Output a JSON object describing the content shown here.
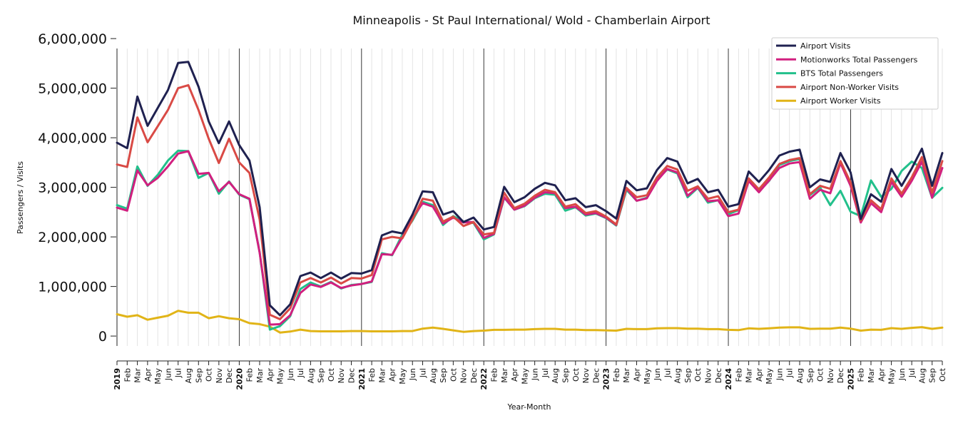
{
  "chart_data": {
    "type": "line",
    "title": "Minneapolis - St Paul International/ Wold - Chamberlain Airport",
    "xlabel": "Year-Month",
    "ylabel": "Passengers / Visits",
    "ylim": [
      -200000,
      5800000
    ],
    "yticks": [
      0,
      1000000,
      2000000,
      3000000,
      4000000,
      5000000,
      6000000
    ],
    "ytick_labels": [
      "0",
      "1,000,000",
      "2,000,000",
      "3,000,000",
      "4,000,000",
      "5,000,000",
      "6,000,000"
    ],
    "grid": "vertical",
    "legend_position": "top-right",
    "x": [
      "2019-01",
      "2019-02",
      "2019-03",
      "2019-04",
      "2019-05",
      "2019-06",
      "2019-07",
      "2019-08",
      "2019-09",
      "2019-10",
      "2019-11",
      "2019-12",
      "2020-01",
      "2020-02",
      "2020-03",
      "2020-04",
      "2020-05",
      "2020-06",
      "2020-07",
      "2020-08",
      "2020-09",
      "2020-10",
      "2020-11",
      "2020-12",
      "2021-01",
      "2021-02",
      "2021-03",
      "2021-04",
      "2021-05",
      "2021-06",
      "2021-07",
      "2021-08",
      "2021-09",
      "2021-10",
      "2021-11",
      "2021-12",
      "2022-01",
      "2022-02",
      "2022-03",
      "2022-04",
      "2022-05",
      "2022-06",
      "2022-07",
      "2022-08",
      "2022-09",
      "2022-10",
      "2022-11",
      "2022-12",
      "2023-01",
      "2023-02",
      "2023-03",
      "2023-04",
      "2023-05",
      "2023-06",
      "2023-07",
      "2023-08",
      "2023-09",
      "2023-10",
      "2023-11",
      "2023-12",
      "2024-01",
      "2024-02",
      "2024-03",
      "2024-04",
      "2024-05",
      "2024-06",
      "2024-07",
      "2024-08",
      "2024-09",
      "2024-10",
      "2024-11",
      "2024-12",
      "2025-01",
      "2025-02",
      "2025-03",
      "2025-04",
      "2025-05",
      "2025-06",
      "2025-07",
      "2025-08",
      "2025-09",
      "2025-10"
    ],
    "xtick_labels": [
      "2019",
      "Feb",
      "Mar",
      "Apr",
      "May",
      "Jun",
      "Jul",
      "Aug",
      "Sep",
      "Oct",
      "Nov",
      "Dec",
      "2020",
      "Feb",
      "Mar",
      "Apr",
      "May",
      "Jun",
      "Jul",
      "Aug",
      "Sep",
      "Oct",
      "Nov",
      "Dec",
      "2021",
      "Feb",
      "Mar",
      "Apr",
      "May",
      "Jun",
      "Jul",
      "Aug",
      "Sep",
      "Oct",
      "Nov",
      "Dec",
      "2022",
      "Feb",
      "Mar",
      "Apr",
      "May",
      "Jun",
      "Jul",
      "Aug",
      "Sep",
      "Oct",
      "Nov",
      "Dec",
      "2023",
      "Feb",
      "Mar",
      "Apr",
      "May",
      "Jun",
      "Jul",
      "Aug",
      "Sep",
      "Oct",
      "Nov",
      "Dec",
      "2024",
      "Feb",
      "Mar",
      "Apr",
      "May",
      "Jun",
      "Jul",
      "Aug",
      "Sep",
      "Oct",
      "Nov",
      "Dec",
      "2025",
      "Feb",
      "Mar",
      "Apr",
      "May",
      "Jun",
      "Jul",
      "Aug",
      "Sep",
      "Oct"
    ],
    "series": [
      {
        "name": "Airport Visits",
        "color": "#1f2150",
        "values": [
          3900000,
          3790000,
          4830000,
          4240000,
          4600000,
          4960000,
          5510000,
          5530000,
          5030000,
          4330000,
          3890000,
          4330000,
          3850000,
          3540000,
          2600000,
          620000,
          420000,
          640000,
          1210000,
          1280000,
          1170000,
          1280000,
          1160000,
          1270000,
          1260000,
          1330000,
          2030000,
          2110000,
          2070000,
          2450000,
          2920000,
          2900000,
          2450000,
          2520000,
          2300000,
          2390000,
          2150000,
          2200000,
          3010000,
          2700000,
          2800000,
          2970000,
          3090000,
          3040000,
          2740000,
          2780000,
          2600000,
          2640000,
          2520000,
          2370000,
          3130000,
          2940000,
          2980000,
          3350000,
          3590000,
          3520000,
          3080000,
          3170000,
          2900000,
          2950000,
          2610000,
          2660000,
          3320000,
          3110000,
          3350000,
          3640000,
          3720000,
          3760000,
          3000000,
          3160000,
          3110000,
          3690000,
          3300000,
          2360000,
          2860000,
          2710000,
          3370000,
          3030000,
          3380000,
          3780000,
          3030000,
          3690000
        ]
      },
      {
        "name": "Motionworks Total Passengers",
        "color": "#d11f7f",
        "values": [
          2590000,
          2530000,
          3340000,
          3040000,
          3190000,
          3420000,
          3680000,
          3730000,
          3270000,
          3290000,
          2920000,
          3110000,
          2860000,
          2770000,
          1680000,
          230000,
          240000,
          420000,
          870000,
          1040000,
          990000,
          1080000,
          970000,
          1020000,
          1050000,
          1100000,
          1650000,
          1640000,
          1990000,
          2380000,
          2680000,
          2610000,
          2270000,
          2390000,
          2290000,
          2300000,
          1980000,
          2060000,
          2800000,
          2550000,
          2630000,
          2790000,
          2900000,
          2880000,
          2580000,
          2610000,
          2450000,
          2480000,
          2390000,
          2240000,
          2980000,
          2730000,
          2780000,
          3130000,
          3370000,
          3300000,
          2830000,
          3000000,
          2720000,
          2740000,
          2420000,
          2470000,
          3130000,
          2900000,
          3140000,
          3390000,
          3480000,
          3510000,
          2770000,
          2950000,
          2880000,
          3490000,
          3030000,
          2290000,
          2680000,
          2500000,
          3110000,
          2810000,
          3130000,
          3520000,
          2790000,
          3390000
        ]
      },
      {
        "name": "BTS Total Passengers",
        "color": "#22c08b",
        "values": [
          2640000,
          2570000,
          3420000,
          3030000,
          3250000,
          3540000,
          3740000,
          3730000,
          3190000,
          3290000,
          2870000,
          3120000,
          2850000,
          2760000,
          1690000,
          130000,
          200000,
          400000,
          950000,
          1080000,
          1000000,
          1090000,
          960000,
          1030000,
          1050000,
          1090000,
          1670000,
          1630000,
          2050000,
          2330000,
          2710000,
          2640000,
          2240000,
          2420000,
          2310000,
          2280000,
          1950000,
          2050000,
          2790000,
          2550000,
          2620000,
          2780000,
          2870000,
          2850000,
          2530000,
          2600000,
          2430000,
          2470000,
          2380000,
          2230000,
          2950000,
          2730000,
          2790000,
          3150000,
          3360000,
          3280000,
          2800000,
          2990000,
          2690000,
          2740000,
          2460000,
          2540000,
          3170000,
          2920000,
          3130000,
          3450000,
          3530000,
          3570000,
          2840000,
          3000000,
          2640000,
          2930000,
          2510000,
          2420000,
          3140000,
          2810000,
          2970000,
          3330000,
          3520000,
          3390000,
          2790000,
          2990000
        ]
      },
      {
        "name": "Airport Non-Worker Visits",
        "color": "#d94a45",
        "values": [
          3460000,
          3410000,
          4410000,
          3910000,
          4230000,
          4560000,
          5000000,
          5060000,
          4560000,
          3980000,
          3490000,
          3980000,
          3500000,
          3290000,
          2350000,
          430000,
          340000,
          560000,
          1080000,
          1170000,
          1080000,
          1180000,
          1060000,
          1170000,
          1160000,
          1230000,
          1950000,
          2000000,
          1970000,
          2350000,
          2770000,
          2730000,
          2310000,
          2410000,
          2220000,
          2300000,
          2050000,
          2080000,
          2890000,
          2580000,
          2670000,
          2830000,
          2950000,
          2900000,
          2610000,
          2660000,
          2480000,
          2520000,
          2410000,
          2250000,
          2990000,
          2800000,
          2840000,
          3200000,
          3430000,
          3360000,
          2930000,
          3020000,
          2770000,
          2820000,
          2500000,
          2550000,
          3180000,
          2960000,
          3200000,
          3470000,
          3550000,
          3590000,
          2860000,
          3030000,
          2970000,
          3530000,
          3100000,
          2330000,
          2740000,
          2560000,
          3180000,
          2870000,
          3200000,
          3610000,
          2890000,
          3530000
        ]
      },
      {
        "name": "Airport Worker Visits",
        "color": "#e1b417",
        "values": [
          440000,
          390000,
          420000,
          330000,
          370000,
          410000,
          510000,
          470000,
          470000,
          360000,
          400000,
          360000,
          340000,
          260000,
          240000,
          190000,
          70000,
          90000,
          130000,
          100000,
          95000,
          95000,
          95000,
          100000,
          100000,
          95000,
          95000,
          95000,
          100000,
          100000,
          150000,
          170000,
          145000,
          115000,
          85000,
          100000,
          110000,
          125000,
          125000,
          130000,
          130000,
          140000,
          145000,
          145000,
          130000,
          130000,
          120000,
          120000,
          115000,
          110000,
          145000,
          140000,
          140000,
          155000,
          160000,
          160000,
          150000,
          150000,
          140000,
          140000,
          125000,
          120000,
          155000,
          145000,
          155000,
          170000,
          175000,
          175000,
          145000,
          150000,
          150000,
          170000,
          150000,
          110000,
          130000,
          125000,
          160000,
          145000,
          165000,
          180000,
          145000,
          170000
        ]
      }
    ]
  }
}
